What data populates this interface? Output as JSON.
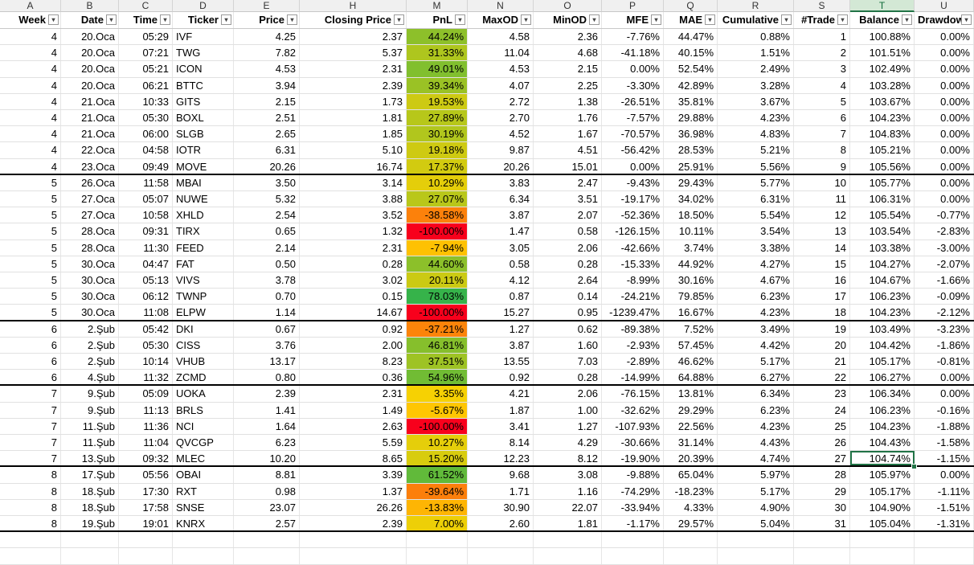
{
  "columns": [
    {
      "letter": "A",
      "header": "Week",
      "align": "r"
    },
    {
      "letter": "B",
      "header": "Date",
      "align": "r"
    },
    {
      "letter": "C",
      "header": "Time",
      "align": "r"
    },
    {
      "letter": "D",
      "header": "Ticker",
      "align": "l"
    },
    {
      "letter": "E",
      "header": "Price",
      "align": "r"
    },
    {
      "letter": "H",
      "header": "Closing Price",
      "align": "r"
    },
    {
      "letter": "M",
      "header": "PnL",
      "align": "r"
    },
    {
      "letter": "N",
      "header": "MaxOD",
      "align": "r"
    },
    {
      "letter": "O",
      "header": "MinOD",
      "align": "r"
    },
    {
      "letter": "P",
      "header": "MFE",
      "align": "r"
    },
    {
      "letter": "Q",
      "header": "MAE",
      "align": "r"
    },
    {
      "letter": "R",
      "header": "Cumulative",
      "align": "r"
    },
    {
      "letter": "S",
      "header": "#Trade",
      "align": "r"
    },
    {
      "letter": "T",
      "header": "Balance",
      "align": "r"
    },
    {
      "letter": "U",
      "header": "Drawdown",
      "align": "r"
    }
  ],
  "selected_column": "T",
  "rows": [
    [
      "4",
      "20.Oca",
      "05:29",
      "IVF",
      "4.25",
      "2.37",
      "44.24%",
      "4.58",
      "2.36",
      "-7.76%",
      "44.47%",
      "0.88%",
      "1",
      "100.88%",
      "0.00%"
    ],
    [
      "4",
      "20.Oca",
      "07:21",
      "TWG",
      "7.82",
      "5.37",
      "31.33%",
      "11.04",
      "4.68",
      "-41.18%",
      "40.15%",
      "1.51%",
      "2",
      "101.51%",
      "0.00%"
    ],
    [
      "4",
      "20.Oca",
      "05:21",
      "ICON",
      "4.53",
      "2.31",
      "49.01%",
      "4.53",
      "2.15",
      "0.00%",
      "52.54%",
      "2.49%",
      "3",
      "102.49%",
      "0.00%"
    ],
    [
      "4",
      "20.Oca",
      "06:21",
      "BTTC",
      "3.94",
      "2.39",
      "39.34%",
      "4.07",
      "2.25",
      "-3.30%",
      "42.89%",
      "3.28%",
      "4",
      "103.28%",
      "0.00%"
    ],
    [
      "4",
      "21.Oca",
      "10:33",
      "GITS",
      "2.15",
      "1.73",
      "19.53%",
      "2.72",
      "1.38",
      "-26.51%",
      "35.81%",
      "3.67%",
      "5",
      "103.67%",
      "0.00%"
    ],
    [
      "4",
      "21.Oca",
      "05:30",
      "BOXL",
      "2.51",
      "1.81",
      "27.89%",
      "2.70",
      "1.76",
      "-7.57%",
      "29.88%",
      "4.23%",
      "6",
      "104.23%",
      "0.00%"
    ],
    [
      "4",
      "21.Oca",
      "06:00",
      "SLGB",
      "2.65",
      "1.85",
      "30.19%",
      "4.52",
      "1.67",
      "-70.57%",
      "36.98%",
      "4.83%",
      "7",
      "104.83%",
      "0.00%"
    ],
    [
      "4",
      "22.Oca",
      "04:58",
      "IOTR",
      "6.31",
      "5.10",
      "19.18%",
      "9.87",
      "4.51",
      "-56.42%",
      "28.53%",
      "5.21%",
      "8",
      "105.21%",
      "0.00%"
    ],
    [
      "4",
      "23.Oca",
      "09:49",
      "MOVE",
      "20.26",
      "16.74",
      "17.37%",
      "20.26",
      "15.01",
      "0.00%",
      "25.91%",
      "5.56%",
      "9",
      "105.56%",
      "0.00%"
    ],
    [
      "5",
      "26.Oca",
      "11:58",
      "MBAI",
      "3.50",
      "3.14",
      "10.29%",
      "3.83",
      "2.47",
      "-9.43%",
      "29.43%",
      "5.77%",
      "10",
      "105.77%",
      "0.00%"
    ],
    [
      "5",
      "27.Oca",
      "05:07",
      "NUWE",
      "5.32",
      "3.88",
      "27.07%",
      "6.34",
      "3.51",
      "-19.17%",
      "34.02%",
      "6.31%",
      "11",
      "106.31%",
      "0.00%"
    ],
    [
      "5",
      "27.Oca",
      "10:58",
      "XHLD",
      "2.54",
      "3.52",
      "-38.58%",
      "3.87",
      "2.07",
      "-52.36%",
      "18.50%",
      "5.54%",
      "12",
      "105.54%",
      "-0.77%"
    ],
    [
      "5",
      "28.Oca",
      "09:31",
      "TIRX",
      "0.65",
      "1.32",
      "-100.00%",
      "1.47",
      "0.58",
      "-126.15%",
      "10.11%",
      "3.54%",
      "13",
      "103.54%",
      "-2.83%"
    ],
    [
      "5",
      "28.Oca",
      "11:30",
      "FEED",
      "2.14",
      "2.31",
      "-7.94%",
      "3.05",
      "2.06",
      "-42.66%",
      "3.74%",
      "3.38%",
      "14",
      "103.38%",
      "-3.00%"
    ],
    [
      "5",
      "30.Oca",
      "04:47",
      "FAT",
      "0.50",
      "0.28",
      "44.60%",
      "0.58",
      "0.28",
      "-15.33%",
      "44.92%",
      "4.27%",
      "15",
      "104.27%",
      "-2.07%"
    ],
    [
      "5",
      "30.Oca",
      "05:13",
      "VIVS",
      "3.78",
      "3.02",
      "20.11%",
      "4.12",
      "2.64",
      "-8.99%",
      "30.16%",
      "4.67%",
      "16",
      "104.67%",
      "-1.66%"
    ],
    [
      "5",
      "30.Oca",
      "06:12",
      "TWNP",
      "0.70",
      "0.15",
      "78.03%",
      "0.87",
      "0.14",
      "-24.21%",
      "79.85%",
      "6.23%",
      "17",
      "106.23%",
      "-0.09%"
    ],
    [
      "5",
      "30.Oca",
      "11:08",
      "ELPW",
      "1.14",
      "14.67",
      "-100.00%",
      "15.27",
      "0.95",
      "-1239.47%",
      "16.67%",
      "4.23%",
      "18",
      "104.23%",
      "-2.12%"
    ],
    [
      "6",
      "2.Şub",
      "05:42",
      "DKI",
      "0.67",
      "0.92",
      "-37.21%",
      "1.27",
      "0.62",
      "-89.38%",
      "7.52%",
      "3.49%",
      "19",
      "103.49%",
      "-3.23%"
    ],
    [
      "6",
      "2.Şub",
      "05:30",
      "CISS",
      "3.76",
      "2.00",
      "46.81%",
      "3.87",
      "1.60",
      "-2.93%",
      "57.45%",
      "4.42%",
      "20",
      "104.42%",
      "-1.86%"
    ],
    [
      "6",
      "2.Şub",
      "10:14",
      "VHUB",
      "13.17",
      "8.23",
      "37.51%",
      "13.55",
      "7.03",
      "-2.89%",
      "46.62%",
      "5.17%",
      "21",
      "105.17%",
      "-0.81%"
    ],
    [
      "6",
      "4.Şub",
      "11:32",
      "ZCMD",
      "0.80",
      "0.36",
      "54.96%",
      "0.92",
      "0.28",
      "-14.99%",
      "64.88%",
      "6.27%",
      "22",
      "106.27%",
      "0.00%"
    ],
    [
      "7",
      "9.Şub",
      "05:09",
      "UOKA",
      "2.39",
      "2.31",
      "3.35%",
      "4.21",
      "2.06",
      "-76.15%",
      "13.81%",
      "6.34%",
      "23",
      "106.34%",
      "0.00%"
    ],
    [
      "7",
      "9.Şub",
      "11:13",
      "BRLS",
      "1.41",
      "1.49",
      "-5.67%",
      "1.87",
      "1.00",
      "-32.62%",
      "29.29%",
      "6.23%",
      "24",
      "106.23%",
      "-0.16%"
    ],
    [
      "7",
      "11.Şub",
      "11:36",
      "NCI",
      "1.64",
      "2.63",
      "-100.00%",
      "3.41",
      "1.27",
      "-107.93%",
      "22.56%",
      "4.23%",
      "25",
      "104.23%",
      "-1.88%"
    ],
    [
      "7",
      "11.Şub",
      "11:04",
      "QVCGP",
      "6.23",
      "5.59",
      "10.27%",
      "8.14",
      "4.29",
      "-30.66%",
      "31.14%",
      "4.43%",
      "26",
      "104.43%",
      "-1.58%"
    ],
    [
      "7",
      "13.Şub",
      "09:32",
      "MLEC",
      "10.20",
      "8.65",
      "15.20%",
      "12.23",
      "8.12",
      "-19.90%",
      "20.39%",
      "4.74%",
      "27",
      "104.74%",
      "-1.15%"
    ],
    [
      "8",
      "17.Şub",
      "05:56",
      "OBAI",
      "8.81",
      "3.39",
      "61.52%",
      "9.68",
      "3.08",
      "-9.88%",
      "65.04%",
      "5.97%",
      "28",
      "105.97%",
      "0.00%"
    ],
    [
      "8",
      "18.Şub",
      "17:30",
      "RXT",
      "0.98",
      "1.37",
      "-39.64%",
      "1.71",
      "1.16",
      "-74.29%",
      "-18.23%",
      "5.17%",
      "29",
      "105.17%",
      "-1.11%"
    ],
    [
      "8",
      "18.Şub",
      "17:58",
      "SNSE",
      "23.07",
      "26.26",
      "-13.83%",
      "30.90",
      "22.07",
      "-33.94%",
      "4.33%",
      "4.90%",
      "30",
      "104.90%",
      "-1.51%"
    ],
    [
      "8",
      "19.Şub",
      "19:01",
      "KNRX",
      "2.57",
      "2.39",
      "7.00%",
      "2.60",
      "1.81",
      "-1.17%",
      "29.57%",
      "5.04%",
      "31",
      "105.04%",
      "-1.31%"
    ]
  ],
  "week_separator_after_rows": [
    8,
    17,
    21,
    26,
    30
  ],
  "selected_cell": {
    "row": 26,
    "column": "T"
  },
  "pnl_color_scale": {
    "min": -100,
    "mid": 0,
    "max": 78.03,
    "low_color": "#f8001c",
    "mid_color": "#ffd200",
    "high_color": "#36b34a"
  },
  "colors": {
    "grid": "#e1e1e1",
    "selection": "#217346",
    "header_bg": "#f0f0f0"
  }
}
